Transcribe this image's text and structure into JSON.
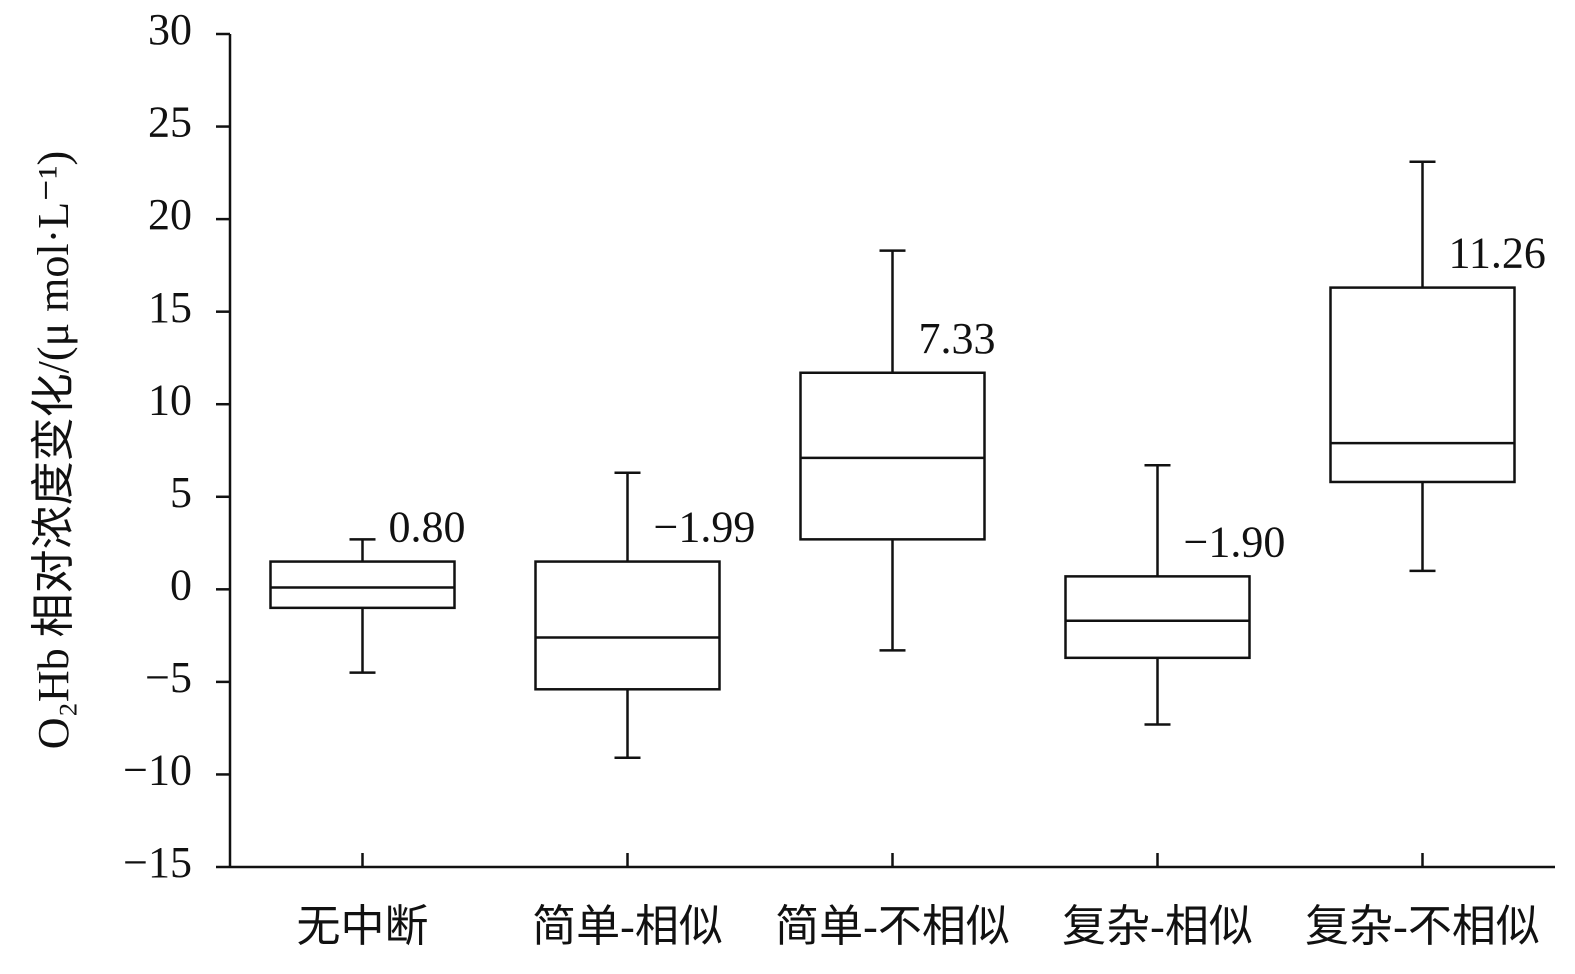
{
  "chart_data": {
    "type": "box",
    "y_label": "O₂Hb 相对浓度变化/(μ mol·L⁻¹)",
    "categories": [
      "无中断",
      "简单-相似",
      "简单-不相似",
      "复杂-相似",
      "复杂-不相似"
    ],
    "whisker_low": [
      -4.5,
      -9.1,
      -3.3,
      -7.3,
      1.0
    ],
    "q1": [
      -1.0,
      -5.4,
      2.7,
      -3.7,
      5.8
    ],
    "median": [
      0.1,
      -2.6,
      7.1,
      -1.7,
      7.9
    ],
    "q3": [
      1.5,
      1.5,
      11.7,
      0.7,
      16.3
    ],
    "whisker_high": [
      2.7,
      6.3,
      18.3,
      6.7,
      23.1
    ],
    "values": [
      0.8,
      -1.99,
      7.33,
      -1.9,
      11.26
    ],
    "value_labels": [
      "0.80",
      "−1.99",
      "7.33",
      "−1.90",
      "11.26"
    ],
    "color": "#111111",
    "ylim": [
      -15,
      30
    ],
    "yticks": [
      {
        "value": -15,
        "label": "−15"
      },
      {
        "value": -10,
        "label": "−10"
      },
      {
        "value": -5,
        "label": "−5"
      },
      0,
      5,
      10,
      15,
      20,
      25,
      30
    ]
  }
}
